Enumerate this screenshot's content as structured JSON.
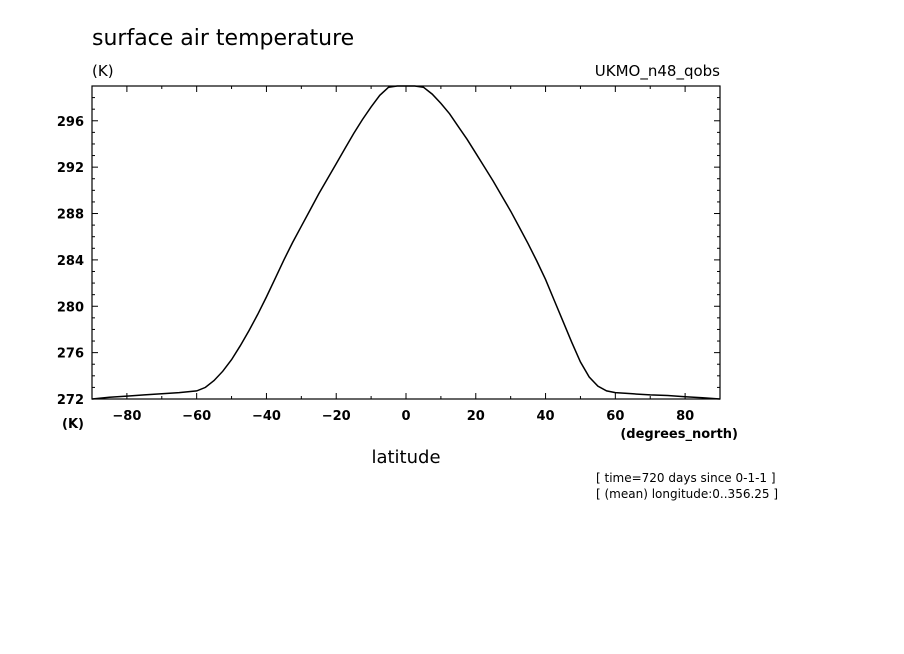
{
  "chart_data": {
    "type": "line",
    "title": "surface air temperature",
    "ylabel_top": "(K)",
    "ylabel_bottom": "(K)",
    "source_label": "UKMO_n48_qobs",
    "xlabel": "latitude",
    "xunits": "(degrees_north)",
    "notes": [
      "[ time=720 days since 0-1-1 ]",
      "[ (mean) longitude:0..356.25 ]"
    ],
    "xlim": [
      -90,
      90
    ],
    "ylim": [
      272,
      299
    ],
    "x_ticks": [
      -80,
      -60,
      -40,
      -20,
      0,
      20,
      40,
      60,
      80
    ],
    "x_tick_labels": [
      "-80",
      "-60",
      "-40",
      "-20",
      "0",
      "20",
      "40",
      "60",
      "80"
    ],
    "y_ticks": [
      272,
      276,
      280,
      284,
      288,
      292,
      296
    ],
    "y_tick_labels": [
      "272",
      "276",
      "280",
      "284",
      "288",
      "292",
      "296"
    ],
    "series": [
      {
        "color": "#000000",
        "x": [
          -90,
          -85,
          -80,
          -75,
          -70,
          -65,
          -60,
          -57.5,
          -55,
          -52.5,
          -50,
          -47.5,
          -45,
          -42.5,
          -40,
          -37.5,
          -35,
          -32.5,
          -30,
          -27.5,
          -25,
          -22.5,
          -20,
          -17.5,
          -15,
          -12.5,
          -10,
          -7.5,
          -5,
          -2.5,
          0,
          2.5,
          5,
          7.5,
          10,
          12.5,
          15,
          17.5,
          20,
          22.5,
          25,
          27.5,
          30,
          32.5,
          35,
          37.5,
          40,
          42.5,
          45,
          47.5,
          50,
          52.5,
          55,
          57.5,
          60,
          65,
          70,
          75,
          80,
          85,
          90
        ],
        "y": [
          272.0,
          272.15,
          272.25,
          272.35,
          272.45,
          272.55,
          272.7,
          273.0,
          273.6,
          274.4,
          275.4,
          276.6,
          277.9,
          279.3,
          280.8,
          282.4,
          284.0,
          285.5,
          286.9,
          288.3,
          289.7,
          291.0,
          292.3,
          293.6,
          294.9,
          296.1,
          297.2,
          298.2,
          298.9,
          299.0,
          299.0,
          299.0,
          298.9,
          298.3,
          297.5,
          296.6,
          295.5,
          294.4,
          293.2,
          292.0,
          290.8,
          289.5,
          288.2,
          286.8,
          285.4,
          283.9,
          282.3,
          280.5,
          278.7,
          276.9,
          275.2,
          273.9,
          273.1,
          272.7,
          272.55,
          272.45,
          272.35,
          272.3,
          272.2,
          272.1,
          272.0
        ]
      }
    ]
  }
}
